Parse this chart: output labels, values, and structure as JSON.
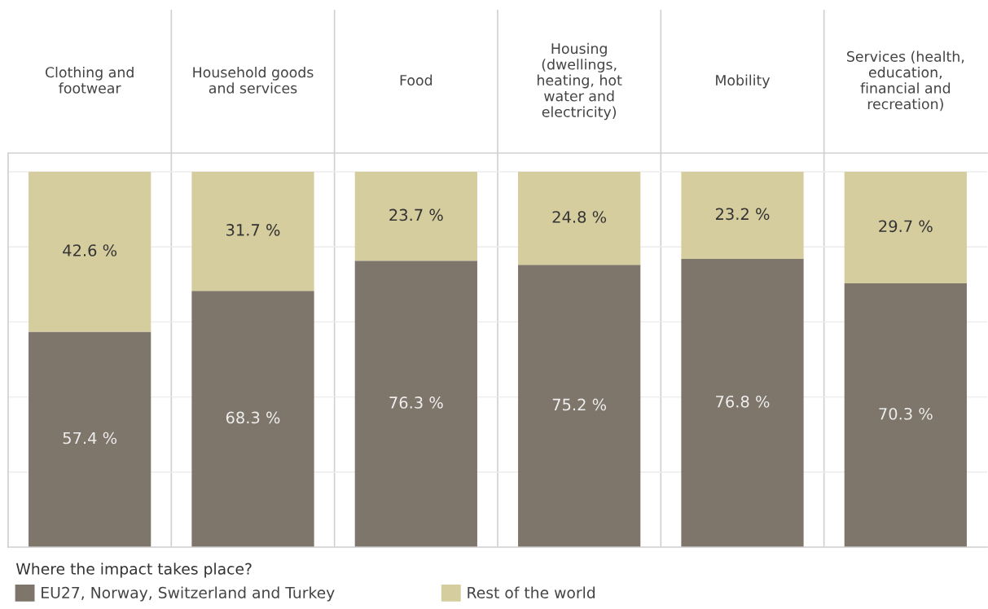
{
  "chart_data": {
    "type": "bar",
    "stacked": true,
    "categories": [
      "Clothing and\nfootwear",
      "Household goods\nand services",
      "Food",
      "Housing\n(dwellings,\nheating, hot\nwater and\nelectricity)",
      "Mobility",
      "Services (health,\neducation,\nfinancial and\nrecreation)"
    ],
    "series": [
      {
        "name": "EU27, Norway, Switzerland and Turkey",
        "color": "#7e756b",
        "values": [
          57.4,
          68.3,
          76.3,
          75.2,
          76.8,
          70.3
        ],
        "value_labels": [
          "57.4 %",
          "68.3 %",
          "76.3 %",
          "75.2 %",
          "76.8 %",
          "70.3 %"
        ]
      },
      {
        "name": "Rest of the world",
        "color": "#d5cd9e",
        "values": [
          42.6,
          31.7,
          23.7,
          24.8,
          23.2,
          29.7
        ],
        "value_labels": [
          "42.6 %",
          "31.7 %",
          "23.7 %",
          "24.8 %",
          "23.2 %",
          "29.7 %"
        ]
      }
    ],
    "legend_title": "Where the impact takes place?",
    "legend": "bottom",
    "ylim": [
      0,
      105
    ],
    "yticks": [
      {
        "value": 0,
        "label": null
      },
      {
        "value": 20,
        "label": null
      },
      {
        "value": 40,
        "label": null
      },
      {
        "value": 60,
        "label": null
      },
      {
        "value": 80,
        "label": null
      },
      {
        "value": 100,
        "label": null
      }
    ],
    "tick_labels": "x",
    "grid": "y"
  }
}
